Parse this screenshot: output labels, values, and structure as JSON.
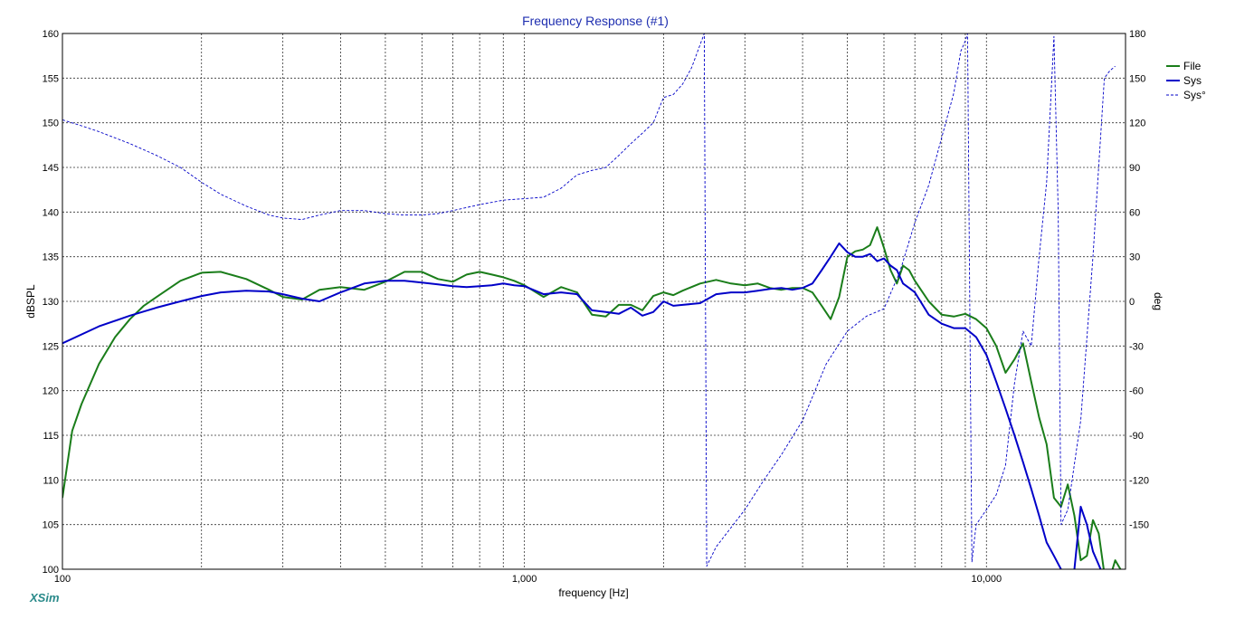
{
  "app": {
    "watermark": "XSim"
  },
  "chart_data": {
    "type": "line",
    "title": "Frequency Response (#1)",
    "xlabel": "frequency [Hz]",
    "ylabel": "dBSPL",
    "y2label": "deg",
    "x_scale": "log",
    "xlim": [
      100,
      20000
    ],
    "ylim": [
      100,
      160
    ],
    "y2lim": [
      -180,
      180
    ],
    "x_ticks": [
      {
        "value": 100,
        "label": "100"
      },
      {
        "value": 1000,
        "label": "1,000"
      },
      {
        "value": 10000,
        "label": "10,000"
      }
    ],
    "y_ticks": [
      100,
      105,
      110,
      115,
      120,
      125,
      130,
      135,
      140,
      145,
      150,
      155,
      160
    ],
    "y2_ticks": [
      -150,
      -120,
      -90,
      -60,
      -30,
      0,
      30,
      60,
      90,
      120,
      150,
      180
    ],
    "grid": true,
    "legend_position": "right",
    "legend": [
      "File",
      "Sys",
      "Sys°"
    ],
    "colors": {
      "File": "#1a7d1a",
      "Sys": "#0000c8",
      "Sys°": "#0000c8",
      "title": "#1f2fb0",
      "watermark": "#2a8a8a",
      "grid": "#333333",
      "frame": "#000000"
    },
    "series": [
      {
        "name": "File",
        "axis": "left",
        "style": "solid",
        "x": [
          100,
          105,
          110,
          120,
          130,
          140,
          150,
          160,
          180,
          200,
          220,
          250,
          280,
          300,
          330,
          360,
          400,
          450,
          500,
          550,
          600,
          650,
          700,
          750,
          800,
          850,
          900,
          950,
          1000,
          1100,
          1200,
          1300,
          1400,
          1500,
          1600,
          1700,
          1800,
          1900,
          2000,
          2100,
          2200,
          2400,
          2600,
          2800,
          3000,
          3200,
          3400,
          3600,
          3800,
          4000,
          4200,
          4400,
          4600,
          4800,
          5000,
          5200,
          5400,
          5600,
          5800,
          6000,
          6200,
          6400,
          6600,
          6800,
          7000,
          7500,
          8000,
          8500,
          9000,
          9500,
          10000,
          10500,
          11000,
          11500,
          12000,
          12500,
          13000,
          13500,
          14000,
          14500,
          15000,
          15500,
          16000,
          16500,
          17000,
          17500,
          18000,
          18500,
          19000,
          19500,
          20000
        ],
        "values": [
          108,
          115.5,
          118.5,
          123,
          126,
          128,
          129.5,
          130.5,
          132.3,
          133.2,
          133.3,
          132.5,
          131.3,
          130.5,
          130.2,
          131.3,
          131.6,
          131.3,
          132.2,
          133.3,
          133.3,
          132.5,
          132.2,
          133.0,
          133.3,
          133.0,
          132.7,
          132.3,
          131.8,
          130.5,
          131.6,
          131.0,
          128.5,
          128.3,
          129.6,
          129.6,
          129.0,
          130.6,
          131.0,
          130.7,
          131.2,
          132.0,
          132.4,
          132.0,
          131.8,
          132.0,
          131.5,
          131.3,
          131.5,
          131.5,
          131.0,
          129.5,
          128.0,
          130.5,
          135.0,
          135.6,
          135.8,
          136.3,
          138.3,
          136.0,
          133.5,
          132.0,
          134.0,
          133.5,
          132.3,
          130.0,
          128.5,
          128.3,
          128.6,
          128.0,
          127.0,
          125.0,
          122.0,
          123.5,
          125.3,
          121.0,
          117.0,
          114.0,
          108.0,
          107.0,
          109.5,
          106.0,
          101.0,
          101.5,
          105.5,
          104.0,
          99.5,
          99.0,
          101.0,
          100.0,
          99.5
        ]
      },
      {
        "name": "Sys",
        "axis": "left",
        "style": "solid",
        "x": [
          100,
          120,
          140,
          160,
          180,
          200,
          220,
          250,
          280,
          300,
          330,
          360,
          400,
          450,
          500,
          550,
          600,
          650,
          700,
          750,
          800,
          850,
          900,
          950,
          1000,
          1100,
          1200,
          1300,
          1400,
          1500,
          1600,
          1700,
          1800,
          1900,
          2000,
          2100,
          2200,
          2400,
          2600,
          2800,
          3000,
          3200,
          3400,
          3600,
          3800,
          4000,
          4200,
          4400,
          4600,
          4800,
          5000,
          5200,
          5400,
          5600,
          5800,
          6000,
          6200,
          6400,
          6600,
          6800,
          7000,
          7500,
          8000,
          8500,
          9000,
          9500,
          10000,
          10500,
          11000,
          11500,
          12000,
          12500,
          13000,
          13500,
          14000,
          14500,
          15000,
          15500,
          16000,
          16500,
          17000,
          17500,
          18000
        ],
        "values": [
          125.3,
          127.2,
          128.4,
          129.3,
          130.0,
          130.6,
          131.0,
          131.2,
          131.1,
          130.8,
          130.3,
          130.0,
          131.0,
          132.0,
          132.3,
          132.3,
          132.1,
          131.9,
          131.7,
          131.6,
          131.7,
          131.8,
          132.0,
          131.8,
          131.7,
          130.8,
          131.0,
          130.8,
          129.0,
          128.8,
          128.6,
          129.3,
          128.4,
          128.8,
          130.0,
          129.5,
          129.6,
          129.8,
          130.8,
          131.0,
          131.0,
          131.2,
          131.4,
          131.5,
          131.3,
          131.5,
          132.0,
          133.5,
          135.0,
          136.5,
          135.5,
          135.0,
          135.0,
          135.3,
          134.5,
          134.8,
          134.0,
          133.5,
          132.0,
          131.5,
          131.0,
          128.5,
          127.5,
          127.0,
          127.0,
          126.0,
          124.0,
          121.0,
          118.0,
          115.0,
          112.0,
          109.0,
          106.0,
          103.0,
          101.5,
          100.0,
          99.0,
          100.0,
          107.0,
          105.0,
          102.0,
          100.5,
          99.0
        ]
      },
      {
        "name": "Sys°",
        "axis": "right",
        "style": "dashed",
        "x": [
          100,
          110,
          120,
          140,
          160,
          180,
          200,
          220,
          250,
          280,
          300,
          330,
          360,
          400,
          450,
          500,
          550,
          600,
          650,
          700,
          800,
          900,
          1000,
          1100,
          1200,
          1300,
          1400,
          1500,
          1600,
          1700,
          1800,
          1900,
          2000,
          2100,
          2200,
          2300,
          2450,
          2480,
          2600,
          2800,
          3000,
          3300,
          3600,
          4000,
          4500,
          5000,
          5500,
          6000,
          6500,
          7000,
          7500,
          8000,
          8500,
          8800,
          9000,
          9100,
          9300,
          9500,
          10000,
          10500,
          11000,
          11500,
          12000,
          12500,
          13000,
          13500,
          14000,
          14300,
          14500,
          15000,
          16000,
          17000,
          18000,
          18500,
          19000
        ],
        "values": [
          122,
          118,
          114,
          106,
          98,
          90,
          80,
          72,
          64,
          58,
          56,
          55,
          58,
          61,
          61,
          59,
          58,
          58,
          59,
          61,
          65,
          68,
          69,
          70,
          76,
          85,
          88,
          90,
          98,
          106,
          113,
          120,
          137,
          139,
          146,
          157,
          180,
          -178,
          -165,
          -152,
          -140,
          -120,
          -103,
          -80,
          -42,
          -20,
          -10,
          -5,
          20,
          53,
          78,
          110,
          140,
          168,
          175,
          180,
          -175,
          -150,
          -140,
          -130,
          -110,
          -55,
          -20,
          -30,
          30,
          80,
          178,
          60,
          -150,
          -140,
          -80,
          30,
          150,
          155,
          158
        ]
      }
    ]
  }
}
